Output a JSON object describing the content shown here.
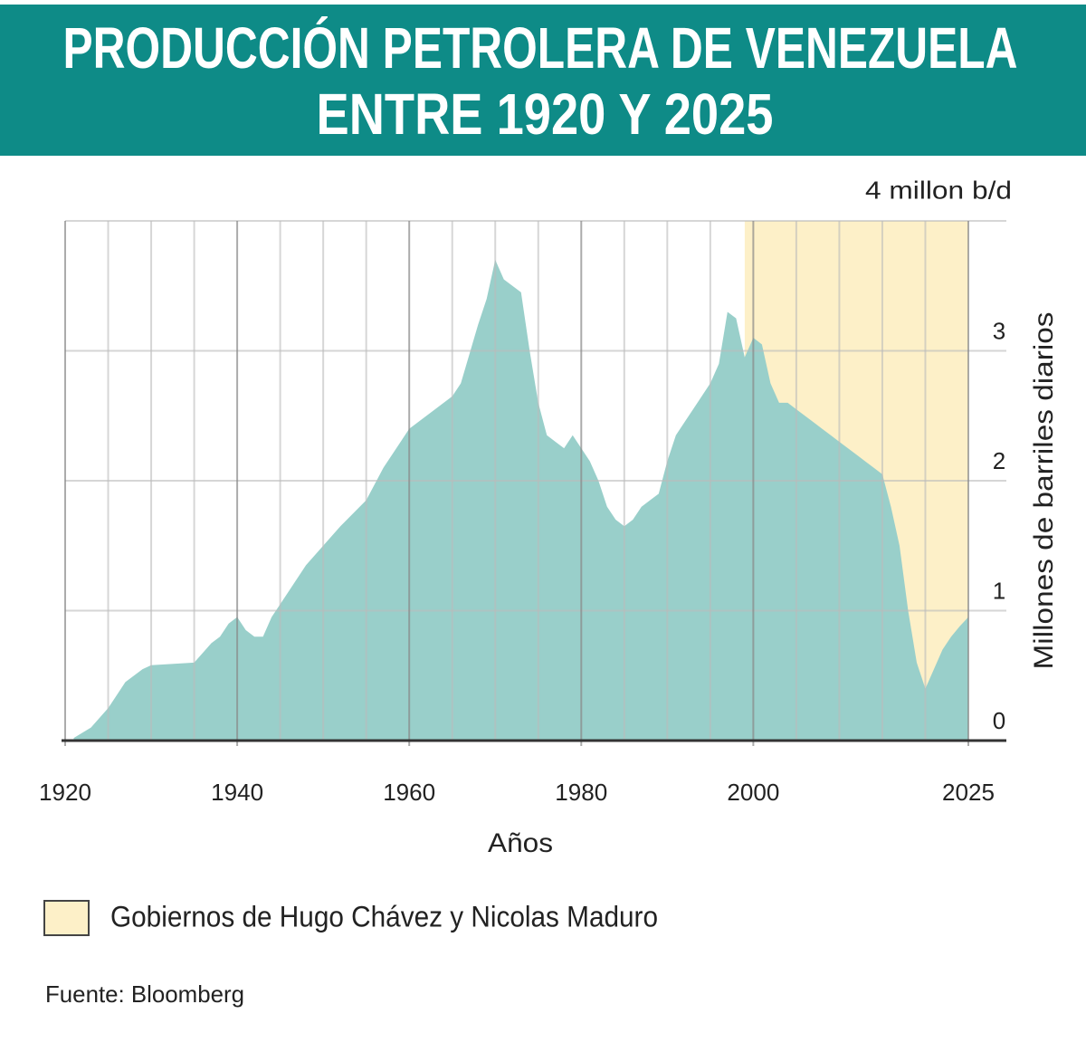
{
  "chart_data": {
    "type": "area",
    "title": [
      "PRODUCCIÓN PETROLERA DE VENEZUELA",
      "ENTRE 1920 Y 2025"
    ],
    "xlabel": "Años",
    "ylabel": "Millones de barriles diarios",
    "source": "Fuente: Bloomberg",
    "x": [
      1921,
      1923,
      1925,
      1927,
      1929,
      1930,
      1935,
      1937,
      1938,
      1939,
      1940,
      1941,
      1942,
      1943,
      1944,
      1945,
      1946,
      1948,
      1950,
      1952,
      1955,
      1957,
      1959,
      1960,
      1963,
      1965,
      1966,
      1968,
      1969,
      1970,
      1971,
      1972,
      1973,
      1974,
      1975,
      1976,
      1977,
      1978,
      1979,
      1980,
      1981,
      1982,
      1983,
      1984,
      1985,
      1986,
      1987,
      1988,
      1989,
      1990,
      1991,
      1992,
      1993,
      1994,
      1995,
      1996,
      1997,
      1998,
      1999,
      2000,
      2001,
      2002,
      2003,
      2004,
      2005,
      2006,
      2007,
      2008,
      2009,
      2010,
      2011,
      2012,
      2013,
      2014,
      2015,
      2016,
      2017,
      2018,
      2019,
      2020,
      2021,
      2022,
      2023,
      2024,
      2025
    ],
    "series": [
      {
        "color": "#99cfca",
        "values": [
          0.02,
          0.1,
          0.25,
          0.45,
          0.55,
          0.58,
          0.6,
          0.75,
          0.8,
          0.9,
          0.95,
          0.85,
          0.8,
          0.8,
          0.95,
          1.05,
          1.15,
          1.35,
          1.5,
          1.65,
          1.85,
          2.1,
          2.3,
          2.4,
          2.55,
          2.65,
          2.75,
          3.2,
          3.4,
          3.7,
          3.55,
          3.5,
          3.45,
          3.0,
          2.6,
          2.35,
          2.3,
          2.25,
          2.35,
          2.25,
          2.15,
          2.0,
          1.8,
          1.7,
          1.65,
          1.7,
          1.8,
          1.85,
          1.9,
          2.15,
          2.35,
          2.45,
          2.55,
          2.65,
          2.75,
          2.9,
          3.3,
          3.25,
          2.95,
          3.1,
          3.05,
          2.75,
          2.6,
          2.6,
          2.55,
          2.5,
          2.45,
          2.4,
          2.35,
          2.3,
          2.25,
          2.2,
          2.15,
          2.1,
          2.05,
          1.8,
          1.5,
          1.0,
          0.6,
          0.4,
          0.55,
          0.7,
          0.8,
          0.88,
          0.95
        ]
      }
    ],
    "highlight": {
      "label": "Gobiernos de Hugo Chávez y Nicolas Maduro",
      "from": 1999,
      "to": 2025,
      "color": "#fdf0c8"
    },
    "xlim": [
      1920,
      2025
    ],
    "xticks": [
      1920,
      1940,
      1960,
      1980,
      2000,
      2025
    ],
    "x_minor_ticks": [
      1925,
      1930,
      1935,
      1945,
      1950,
      1955,
      1965,
      1970,
      1975,
      1985,
      1990,
      1995,
      2005,
      2010,
      2015,
      2020
    ],
    "ylim": [
      0,
      4
    ],
    "yticks": [
      0,
      1,
      2,
      3,
      {
        "value": 4,
        "label": "4 millon b/d"
      }
    ],
    "grid": true,
    "banner_color": "#0e8b87"
  }
}
